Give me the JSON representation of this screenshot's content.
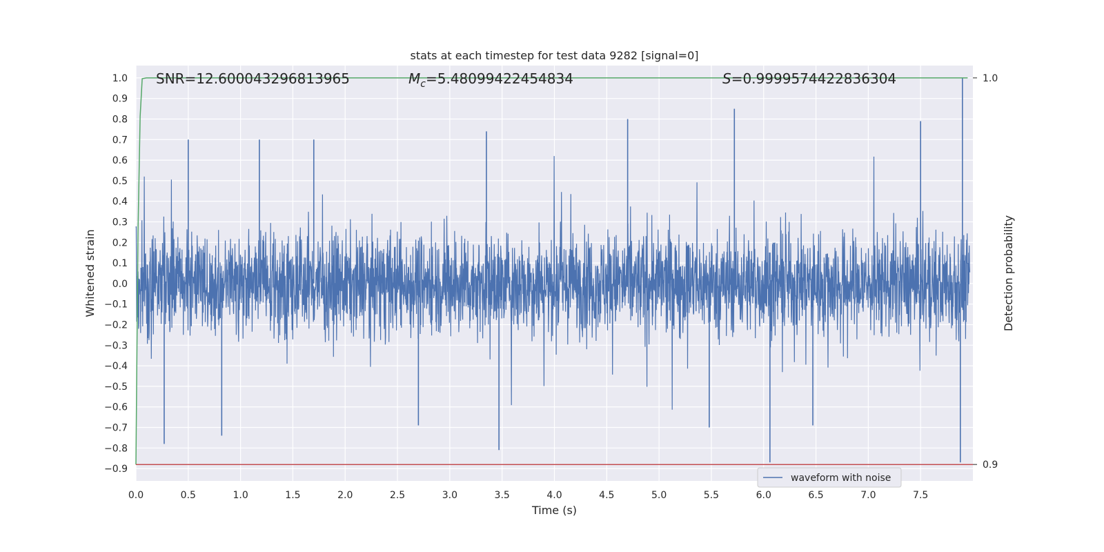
{
  "chart_data": {
    "type": "line",
    "title": "stats at each timestep for test data 9282 [signal=0]",
    "xlabel": "Time (s)",
    "ylabel": "Whitened strain",
    "y2label": "Detection probability",
    "xlim": [
      0.0,
      8.0
    ],
    "ylim": [
      -0.96,
      1.06
    ],
    "y2lim": [
      0.89,
      1.0
    ],
    "xticks": [
      "0.0",
      "0.5",
      "1.0",
      "1.5",
      "2.0",
      "2.5",
      "3.0",
      "3.5",
      "4.0",
      "4.5",
      "5.0",
      "5.5",
      "6.0",
      "6.5",
      "7.0",
      "7.5"
    ],
    "yticks": [
      "1.0",
      "0.9",
      "0.8",
      "0.7",
      "0.6",
      "0.5",
      "0.4",
      "0.3",
      "0.2",
      "0.1",
      "0.0",
      "-0.1",
      "-0.2",
      "-0.3",
      "-0.4",
      "-0.5",
      "-0.6",
      "-0.7",
      "-0.8",
      "-0.9"
    ],
    "y2ticks": [
      "1.0",
      "0.9"
    ],
    "annotations": {
      "snr": "SNR=12.600043296813965",
      "mc_symbol": "M",
      "mc_subscript": "c",
      "mc_value": "=5.48099422454834",
      "s_symbol": "S",
      "s_value": "=0.9999574422836304"
    },
    "legend": {
      "label": "waveform with noise",
      "position": "lower-right"
    },
    "grid": true,
    "series": [
      {
        "name": "waveform with noise",
        "axis": "left",
        "color": "#4c72b0",
        "description_values": {
          "typical_range": [
            -0.4,
            0.4
          ],
          "spikes": [
            {
              "x": 0.27,
              "y": -0.78
            },
            {
              "x": 0.5,
              "y": 0.7
            },
            {
              "x": 0.82,
              "y": -0.74
            },
            {
              "x": 1.18,
              "y": 0.7
            },
            {
              "x": 1.7,
              "y": 0.7
            },
            {
              "x": 2.7,
              "y": -0.69
            },
            {
              "x": 3.35,
              "y": 0.74
            },
            {
              "x": 3.47,
              "y": -0.81
            },
            {
              "x": 4.7,
              "y": 0.8
            },
            {
              "x": 5.48,
              "y": -0.7
            },
            {
              "x": 5.72,
              "y": 0.85
            },
            {
              "x": 6.06,
              "y": -0.87
            },
            {
              "x": 6.47,
              "y": -0.69
            },
            {
              "x": 7.5,
              "y": 0.79
            },
            {
              "x": 7.9,
              "y": 1.0
            },
            {
              "x": 7.88,
              "y": -0.87
            }
          ]
        }
      },
      {
        "name": "",
        "axis": "right",
        "color": "#55a868",
        "x": [
          0.0,
          0.02,
          0.04,
          0.06,
          0.1,
          1.0,
          4.0,
          7.95
        ],
        "values": [
          0.9,
          0.96,
          0.99,
          0.9998,
          1.0,
          1.0,
          1.0,
          1.0
        ]
      },
      {
        "name": "",
        "axis": "right",
        "color": "#c44e52",
        "x": [
          0.0,
          8.0
        ],
        "values": [
          0.9,
          0.9
        ]
      }
    ]
  }
}
